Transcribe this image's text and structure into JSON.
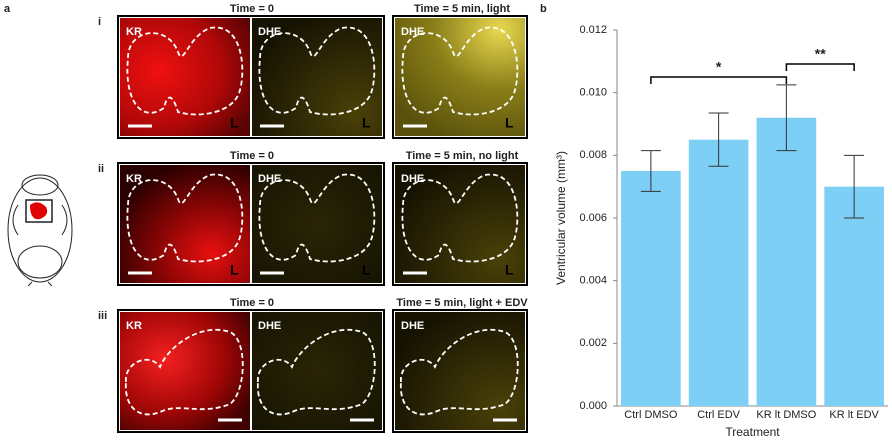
{
  "panel_labels": [
    "a",
    "b"
  ],
  "rows": [
    {
      "label": "i",
      "headers": [
        "Time = 0",
        "Time = 5 min, light"
      ],
      "tiles": [
        "KR",
        "DHE",
        "DHE"
      ],
      "markers": [
        "L",
        "L",
        "L"
      ]
    },
    {
      "label": "ii",
      "headers": [
        "Time = 0",
        "Time = 5 min, no light"
      ],
      "tiles": [
        "KR",
        "DHE",
        "DHE"
      ],
      "markers": [
        "L",
        "L",
        "L"
      ]
    },
    {
      "label": "iii",
      "headers": [
        "Time = 0",
        "Time = 5 min, light + EDV"
      ],
      "tiles": [
        "KR",
        "DHE",
        "DHE"
      ]
    }
  ],
  "chart_data": {
    "type": "bar",
    "ylabel": "Ventricular volume (mm³)",
    "xlabel": "Treatment",
    "categories": [
      "Ctrl DMSO",
      "Ctrl EDV",
      "KR lt DMSO",
      "KR lt EDV"
    ],
    "values": [
      0.0075,
      0.0085,
      0.0092,
      0.007
    ],
    "errors": [
      0.00065,
      0.00085,
      0.00105,
      0.001
    ],
    "color": "#7dcff5",
    "ylim": [
      0,
      0.012
    ],
    "yticks": [
      {
        "value": 0,
        "label": "0.000"
      },
      {
        "value": 0.002,
        "label": "0.002"
      },
      {
        "value": 0.004,
        "label": "0.004"
      },
      {
        "value": 0.006,
        "label": "0.006"
      },
      {
        "value": 0.008,
        "label": "0.008"
      },
      {
        "value": 0.01,
        "label": "0.010"
      },
      {
        "value": 0.012,
        "label": "0.012"
      }
    ],
    "annotations": [
      "*",
      "**"
    ]
  }
}
